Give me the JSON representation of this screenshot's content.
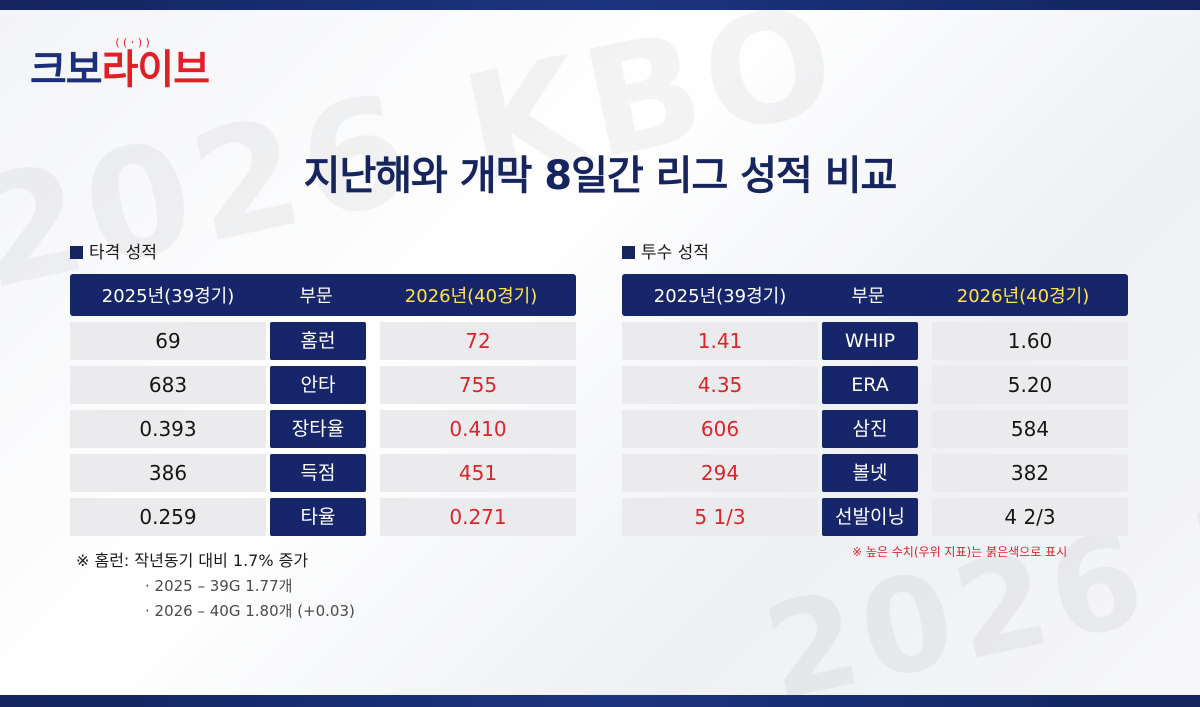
{
  "brand": {
    "logo_part1": "크보",
    "logo_part2": "라이브",
    "logo_mic": "((·))"
  },
  "title": "지난해와 개막 8일간 리그 성적 비교",
  "batting": {
    "label": "타격 성적",
    "headers": [
      "2025년(39경기)",
      "부문",
      "2026년(40경기)"
    ],
    "rows": [
      {
        "prev": "69",
        "cat": "홈런",
        "curr": "72"
      },
      {
        "prev": "683",
        "cat": "안타",
        "curr": "755"
      },
      {
        "prev": "0.393",
        "cat": "장타율",
        "curr": "0.410"
      },
      {
        "prev": "386",
        "cat": "득점",
        "curr": "451"
      },
      {
        "prev": "0.259",
        "cat": "타율",
        "curr": "0.271"
      }
    ],
    "note": "※ 홈런: 작년동기 대비 1.7% 증가",
    "note_lines": [
      "· 2025 – 39G 1.77개",
      "· 2026 – 40G 1.80개 (+0.03)"
    ]
  },
  "pitching": {
    "label": "투수 성적",
    "headers": [
      "2025년(39경기)",
      "부문",
      "2026년(40경기)"
    ],
    "rows": [
      {
        "prev": "1.41",
        "cat": "WHIP",
        "curr": "1.60"
      },
      {
        "prev": "4.35",
        "cat": "ERA",
        "curr": "5.20"
      },
      {
        "prev": "606",
        "cat": "삼진",
        "curr": "584"
      },
      {
        "prev": "294",
        "cat": "볼넷",
        "curr": "382"
      },
      {
        "prev": "5 1/3",
        "cat": "선발이닝",
        "curr": "4 2/3"
      }
    ],
    "legend": "※ 높은 수치(우위 지표)는 붉은색으로 표시"
  },
  "colors": {
    "navy": "#17266b",
    "highlight_red": "#d8262c",
    "header_yellow": "#ffe34a",
    "cell_gray": "#ebebed"
  }
}
